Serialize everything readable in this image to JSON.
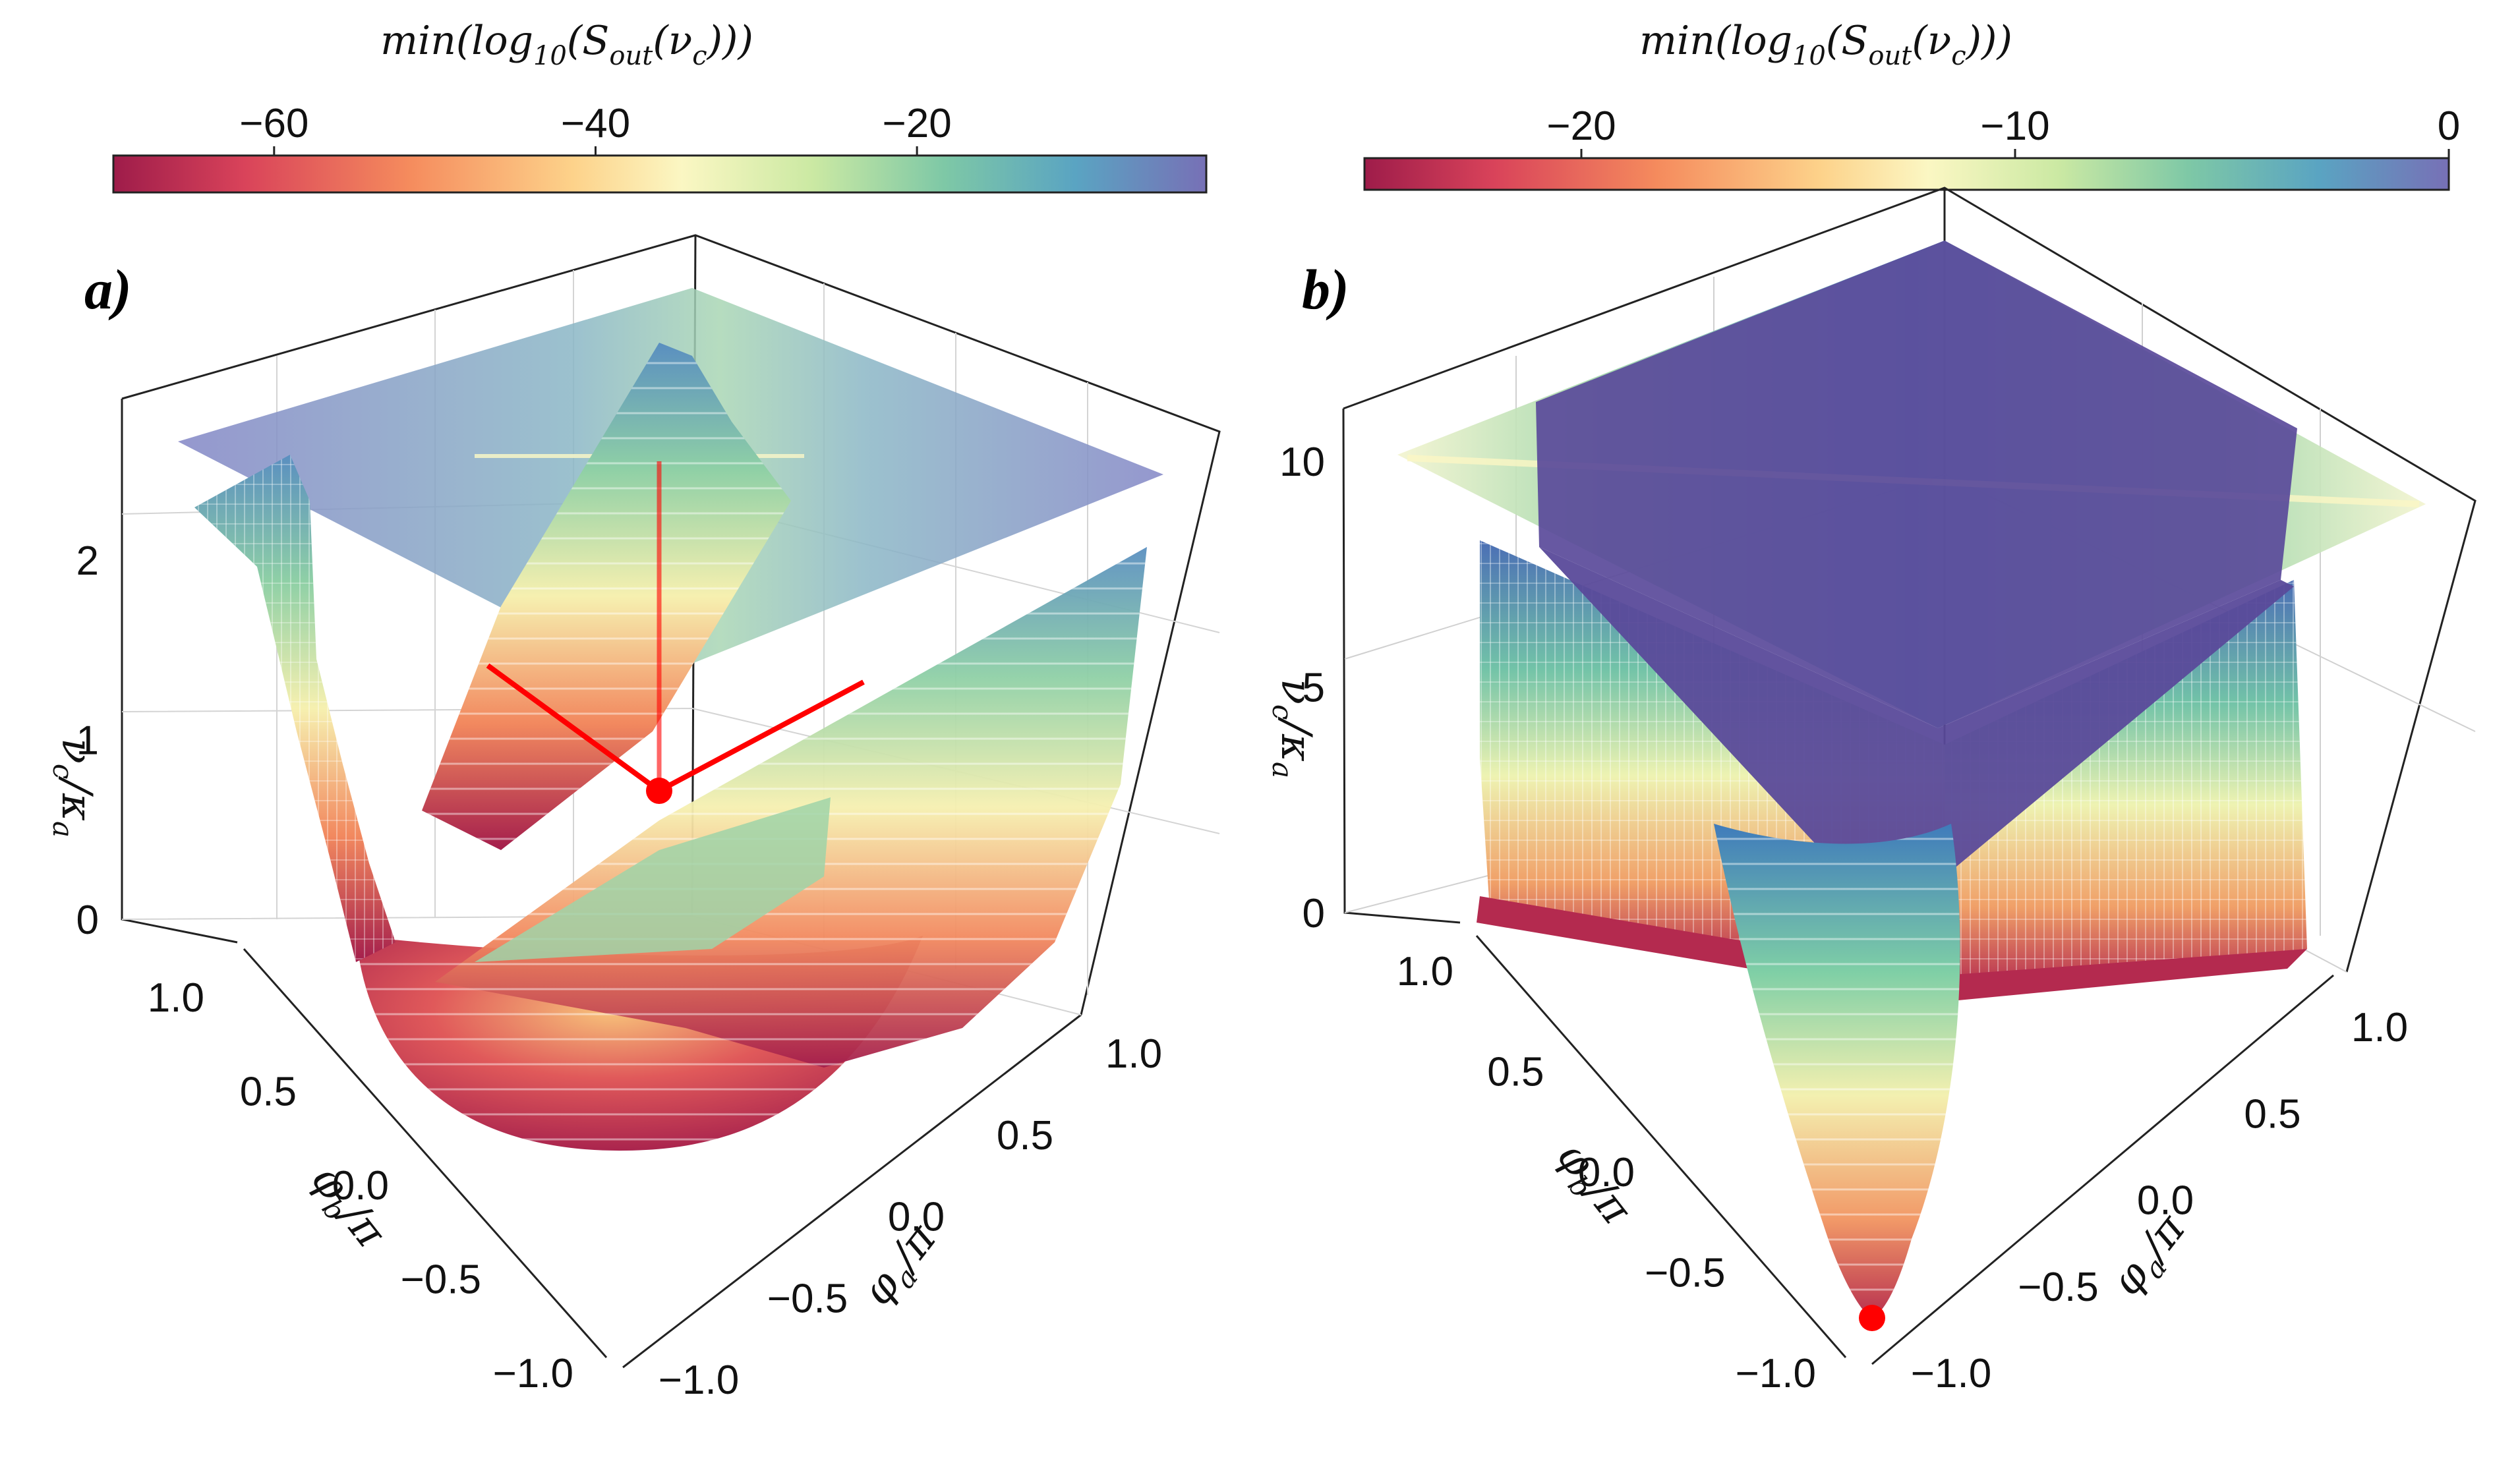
{
  "chart_data": [
    {
      "panel": "a)",
      "type": "surface3d",
      "colorbar": {
        "label": "min(log10(S_out(ν_c)))",
        "label_main": "min(log",
        "label_sub10": "10",
        "label_mid": "(S",
        "label_sub_out": "out",
        "label_end": "(ν",
        "label_sub_c": "c",
        "label_close": ")))",
        "range": [
          -70,
          -2
        ],
        "ticks": [
          -60,
          -40,
          -20
        ],
        "tick_labels": [
          "−60",
          "−40",
          "−20"
        ]
      },
      "zlabel": "ν_c/κ_a",
      "zlabel_nu": "ν",
      "zlabel_c": "c",
      "zlabel_kappa": "κ",
      "zlabel_a": "a",
      "zticks": [
        0,
        1,
        2
      ],
      "ztick_labels": [
        "0",
        "1",
        "2"
      ],
      "xlabel": "φ_a/π",
      "xlabel_phi": "φ",
      "xlabel_sub": "a",
      "xlabel_pi": "π",
      "xticks": [
        -1.0,
        -0.5,
        0.0,
        0.5,
        1.0
      ],
      "xtick_labels": [
        "−1.0",
        "−0.5",
        "0.0",
        "0.5",
        "1.0"
      ],
      "ylabel": "φ_b/π",
      "ylabel_phi": "φ",
      "ylabel_sub": "b",
      "ylabel_pi": "π",
      "yticks": [
        -1.0,
        -0.5,
        0.0,
        0.5,
        1.0
      ],
      "ytick_labels": [
        "−1.0",
        "−0.5",
        "0.0",
        "0.5",
        "1.0"
      ],
      "minimum_marker": {
        "phi_a": 0.0,
        "phi_b": 0.0,
        "nu_c": 0.8,
        "color": "#ff0000"
      }
    },
    {
      "panel": "b)",
      "type": "surface3d",
      "colorbar": {
        "label": "min(log10(S_out(ν_c)))",
        "label_main": "min(log",
        "label_sub10": "10",
        "label_mid": "(S",
        "label_sub_out": "out",
        "label_end": "(ν",
        "label_sub_c": "c",
        "label_close": ")))",
        "range": [
          -25,
          0
        ],
        "ticks": [
          -20,
          -10,
          0
        ],
        "tick_labels": [
          "−20",
          "−10",
          "0"
        ]
      },
      "zlabel": "ν_c/κ_a",
      "zlabel_nu": "ν",
      "zlabel_c": "c",
      "zlabel_kappa": "κ",
      "zlabel_a": "a",
      "zticks": [
        0,
        5,
        10
      ],
      "ztick_labels": [
        "0",
        "5",
        "10"
      ],
      "xlabel": "φ_a/π",
      "xlabel_phi": "φ",
      "xlabel_sub": "a",
      "xlabel_pi": "π",
      "xticks": [
        -1.0,
        -0.5,
        0.0,
        0.5,
        1.0
      ],
      "xtick_labels": [
        "−1.0",
        "−0.5",
        "0.0",
        "0.5",
        "1.0"
      ],
      "ylabel": "φ_b/π",
      "ylabel_phi": "φ",
      "ylabel_sub": "b",
      "ylabel_pi": "π",
      "yticks": [
        -1.0,
        -0.5,
        0.0,
        0.5,
        1.0
      ],
      "ytick_labels": [
        "−1.0",
        "−0.5",
        "0.0",
        "0.5",
        "1.0"
      ],
      "minimum_marker": {
        "phi_a": -1.0,
        "phi_b": -1.0,
        "nu_c": 0.0,
        "color": "#ff0000"
      }
    }
  ],
  "colors": {
    "cmap": [
      "#9e1c4a",
      "#d9435a",
      "#f58b5d",
      "#fdd28a",
      "#fbf7c3",
      "#cbe9a3",
      "#7ec8a6",
      "#5aa4c2",
      "#7770b6"
    ],
    "marker": "#ff0000",
    "plane": "#8a8cc8",
    "cap": "#5a4a9a"
  }
}
